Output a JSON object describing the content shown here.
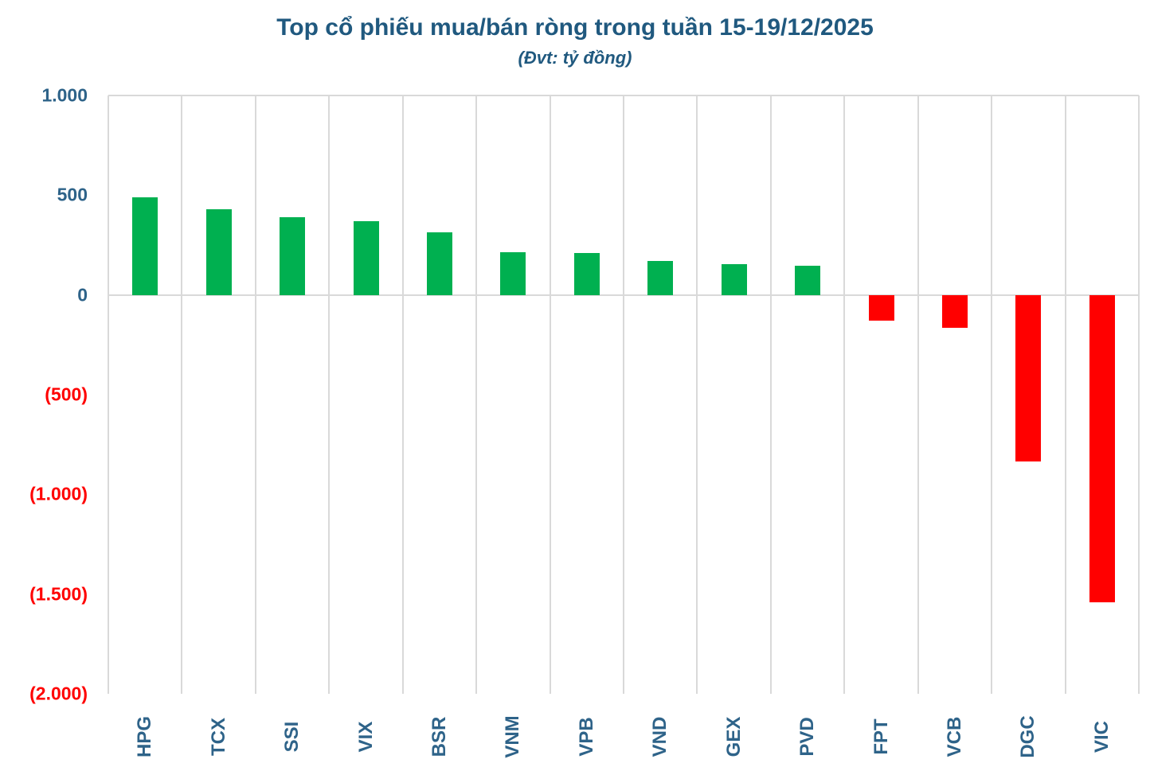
{
  "header": {
    "title": "Top cổ phiếu mua/bán ròng trong tuần 15-19/12/2025",
    "subtitle": "(Đvt: tỷ đồng)"
  },
  "colors": {
    "title_text": "#20597F",
    "axis_label_positive": "#2E6389",
    "axis_label_negative": "#FF0000",
    "bar_positive": "#00B050",
    "bar_negative": "#FF0000",
    "gridline": "#D9D9D9"
  },
  "chart_data": {
    "type": "bar",
    "title": "Top cổ phiếu mua/bán ròng trong tuần 15-19/12/2025",
    "subtitle": "(Đvt: tỷ đồng)",
    "unit": "tỷ đồng",
    "categories": [
      "HPG",
      "TCX",
      "SSI",
      "VIX",
      "BSR",
      "VNM",
      "VPB",
      "VND",
      "GEX",
      "PVD",
      "FPT",
      "VCB",
      "DGC",
      "VIC"
    ],
    "values": [
      490,
      430,
      390,
      370,
      315,
      215,
      210,
      170,
      155,
      145,
      -130,
      -165,
      -835,
      -1540
    ],
    "xlabel": "",
    "ylabel": "",
    "ylim": [
      -2000,
      1000
    ],
    "yticks": [
      {
        "value": 1000,
        "label": "1.000"
      },
      {
        "value": 500,
        "label": "500"
      },
      {
        "value": 0,
        "label": "0"
      },
      {
        "value": -500,
        "label": "(500)"
      },
      {
        "value": -1000,
        "label": "(1.000)"
      },
      {
        "value": -1500,
        "label": "(1.500)"
      },
      {
        "value": -2000,
        "label": "(2.000)"
      }
    ],
    "grid": "vertical-category-separators, top-border and zero-line only",
    "legend": "none",
    "bar_color_positive": "#00B050",
    "bar_color_negative": "#FF0000"
  }
}
